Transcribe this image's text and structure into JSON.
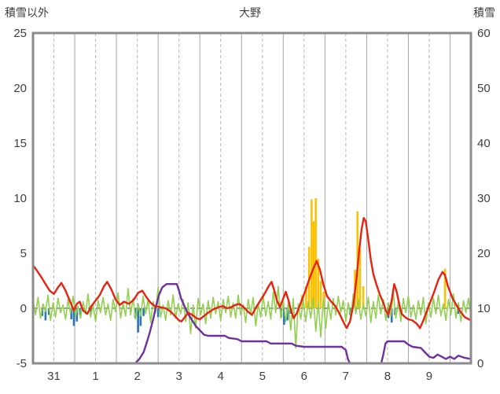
{
  "chart_data": {
    "type": "line",
    "title": "大野",
    "left_axis_label": "積雪以外",
    "right_axis_label": "積雪",
    "x_domain": [
      0,
      10.5
    ],
    "left_ylim": [
      -5,
      25
    ],
    "right_ylim": [
      0,
      60
    ],
    "left_ticks": [
      -5,
      0,
      5,
      10,
      15,
      20,
      25
    ],
    "right_ticks": [
      0,
      10,
      20,
      30,
      40,
      50,
      60
    ],
    "x_tick_labels": [
      "31",
      "1",
      "2",
      "3",
      "4",
      "5",
      "6",
      "7",
      "8",
      "9"
    ],
    "grid": {
      "vertical_solid_at_integers": true,
      "vertical_dashed_at_halves": true,
      "zero_line_dashed": true
    },
    "colors": {
      "red": "#e8220f",
      "green": "#92d050",
      "purple": "#7030a0",
      "orange": "#ffc000",
      "blue": "#2e75b6",
      "grid": "#a6a6a6",
      "frame": "#8c8c8c"
    },
    "series": [
      {
        "name": "orange-bars",
        "type": "bars-up",
        "color": "#ffc000",
        "width": 2.6,
        "points": [
          [
            6.45,
            1.2
          ],
          [
            6.55,
            2.0
          ],
          [
            6.62,
            5.6
          ],
          [
            6.68,
            9.9
          ],
          [
            6.73,
            7.9
          ],
          [
            6.78,
            10.0
          ],
          [
            6.84,
            4.5
          ],
          [
            6.9,
            2.5
          ],
          [
            6.97,
            1.5
          ],
          [
            7.72,
            3.5
          ],
          [
            7.78,
            8.8
          ],
          [
            7.84,
            5.4
          ],
          [
            7.92,
            2.0
          ],
          [
            9.88,
            3.6
          ]
        ]
      },
      {
        "name": "blue-bars",
        "type": "bars-down",
        "color": "#2e75b6",
        "width": 2.6,
        "points": [
          [
            0.22,
            -0.7
          ],
          [
            0.3,
            -1.1
          ],
          [
            0.38,
            -0.6
          ],
          [
            0.92,
            -1.0
          ],
          [
            0.98,
            -1.6
          ],
          [
            1.05,
            -1.2
          ],
          [
            1.12,
            -0.6
          ],
          [
            1.39,
            -0.5
          ],
          [
            2.45,
            -0.9
          ],
          [
            2.52,
            -2.2
          ],
          [
            2.58,
            -1.6
          ],
          [
            2.65,
            -0.7
          ],
          [
            3.0,
            -0.8
          ],
          [
            5.95,
            -0.8
          ],
          [
            6.02,
            -1.5
          ],
          [
            6.1,
            -1.1
          ],
          [
            6.18,
            -0.5
          ],
          [
            7.6,
            -0.6
          ],
          [
            8.52,
            -0.9
          ],
          [
            8.6,
            -1.3
          ],
          [
            8.68,
            -0.6
          ],
          [
            10.2,
            -0.5
          ]
        ]
      },
      {
        "name": "green-line",
        "type": "line",
        "color": "#92d050",
        "width": 1.6,
        "t0": 0,
        "dt": 0.06,
        "values": [
          0.7,
          -0.6,
          1.0,
          -0.9,
          0.4,
          -0.3,
          1.2,
          -1.1,
          0.5,
          -0.8,
          0.9,
          -0.4,
          0.3,
          -1.0,
          0.8,
          -0.5,
          1.1,
          -0.7,
          0.2,
          -0.9,
          0.6,
          -0.5,
          1.3,
          -0.8,
          0.3,
          -1.2,
          0.7,
          -0.4,
          1.0,
          -0.6,
          0.4,
          -1.1,
          0.8,
          -0.3,
          1.4,
          -0.9,
          0.5,
          -0.7,
          1.8,
          -0.6,
          0.9,
          -1.0,
          0.4,
          -0.7,
          1.1,
          -0.5,
          0.8,
          -1.3,
          0.6,
          -0.4,
          1.9,
          -0.8,
          0.3,
          -1.1,
          0.7,
          -0.6,
          1.2,
          -0.9,
          0.4,
          -0.5,
          0.8,
          -1.2,
          0.5,
          -2.3,
          0.3,
          -1.8,
          0.9,
          -0.6,
          0.4,
          -1.4,
          0.7,
          -0.9,
          1.0,
          -0.5,
          0.6,
          -1.1,
          0.8,
          -0.4,
          1.1,
          -0.8,
          0.5,
          -0.9,
          1.2,
          -0.6,
          0.3,
          -1.3,
          0.8,
          -0.5,
          1.0,
          -1.6,
          0.4,
          -0.8,
          1.1,
          -0.7,
          0.6,
          -1.0,
          1.5,
          -0.4,
          2.0,
          -0.9,
          0.7,
          -1.2,
          0.5,
          -2.0,
          0.9,
          -3.6,
          0.4,
          -1.0,
          0.8,
          -1.2,
          0.6,
          -0.9,
          1.0,
          -2.1,
          0.5,
          -2.6,
          0.8,
          -1.8,
          0.6,
          -1.0,
          0.9,
          -0.6,
          1.1,
          -0.4,
          0.7,
          -1.2,
          0.5,
          -0.8,
          1.3,
          -0.5,
          0.8,
          -1.0,
          0.4,
          -0.7,
          1.0,
          -1.3,
          0.6,
          -0.9,
          1.2,
          -0.5,
          0.8,
          -1.1,
          0.5,
          -0.7,
          1.4,
          -0.9,
          0.6,
          -1.2,
          0.9,
          -0.4,
          1.1,
          -0.8,
          0.3,
          -1.0,
          0.7,
          -0.6,
          1.0,
          -1.4,
          0.5,
          -0.8,
          0.9,
          -0.5,
          1.2,
          -0.7,
          0.4,
          -1.1,
          0.8,
          -0.6,
          1.3,
          -0.9,
          0.5,
          -1.2,
          0.7,
          -0.4,
          0.9,
          -0.8
        ]
      },
      {
        "name": "purple-line",
        "type": "line",
        "color": "#7030a0",
        "width": 2.4,
        "points": [
          [
            0,
            -5
          ],
          [
            2.45,
            -5
          ],
          [
            2.55,
            -4.6
          ],
          [
            2.65,
            -4.0
          ],
          [
            2.72,
            -3.2
          ],
          [
            2.8,
            -2.2
          ],
          [
            2.88,
            -1.0
          ],
          [
            2.95,
            0.2
          ],
          [
            3.02,
            1.2
          ],
          [
            3.1,
            1.9
          ],
          [
            3.2,
            2.2
          ],
          [
            3.45,
            2.2
          ],
          [
            3.5,
            1.6
          ],
          [
            3.55,
            0.9
          ],
          [
            3.62,
            0.3
          ],
          [
            3.7,
            -0.4
          ],
          [
            3.8,
            -1.0
          ],
          [
            3.9,
            -1.6
          ],
          [
            4.0,
            -2.0
          ],
          [
            4.1,
            -2.4
          ],
          [
            4.2,
            -2.5
          ],
          [
            4.6,
            -2.5
          ],
          [
            4.7,
            -2.7
          ],
          [
            4.9,
            -2.8
          ],
          [
            5.0,
            -3.0
          ],
          [
            5.6,
            -3.0
          ],
          [
            5.7,
            -3.2
          ],
          [
            6.2,
            -3.2
          ],
          [
            6.3,
            -3.4
          ],
          [
            6.5,
            -3.5
          ],
          [
            7.4,
            -3.5
          ],
          [
            7.5,
            -3.8
          ],
          [
            7.55,
            -4.6
          ],
          [
            7.6,
            -5.0
          ],
          [
            8.35,
            -5.0
          ],
          [
            8.4,
            -4.2
          ],
          [
            8.45,
            -3.2
          ],
          [
            8.5,
            -3.0
          ],
          [
            8.9,
            -3.0
          ],
          [
            9.0,
            -3.3
          ],
          [
            9.1,
            -3.5
          ],
          [
            9.3,
            -3.6
          ],
          [
            9.4,
            -4.0
          ],
          [
            9.5,
            -4.4
          ],
          [
            9.6,
            -4.5
          ],
          [
            9.7,
            -4.2
          ],
          [
            9.8,
            -4.4
          ],
          [
            9.9,
            -4.6
          ],
          [
            10.0,
            -4.4
          ],
          [
            10.1,
            -4.6
          ],
          [
            10.2,
            -4.3
          ],
          [
            10.35,
            -4.5
          ],
          [
            10.5,
            -4.6
          ]
        ]
      },
      {
        "name": "red-line",
        "type": "line",
        "color": "#e8220f",
        "width": 2.4,
        "points": [
          [
            0,
            3.9
          ],
          [
            0.08,
            3.5
          ],
          [
            0.15,
            3.1
          ],
          [
            0.22,
            2.7
          ],
          [
            0.3,
            2.2
          ],
          [
            0.4,
            1.6
          ],
          [
            0.5,
            1.3
          ],
          [
            0.6,
            1.9
          ],
          [
            0.68,
            2.3
          ],
          [
            0.78,
            1.6
          ],
          [
            0.88,
            0.7
          ],
          [
            0.98,
            -0.2
          ],
          [
            1.05,
            0.4
          ],
          [
            1.12,
            0.6
          ],
          [
            1.2,
            -0.2
          ],
          [
            1.3,
            -0.5
          ],
          [
            1.4,
            0.2
          ],
          [
            1.5,
            0.7
          ],
          [
            1.6,
            1.2
          ],
          [
            1.7,
            2.0
          ],
          [
            1.78,
            2.4
          ],
          [
            1.88,
            1.7
          ],
          [
            1.98,
            0.8
          ],
          [
            2.08,
            0.3
          ],
          [
            2.18,
            0.6
          ],
          [
            2.3,
            0.4
          ],
          [
            2.42,
            0.8
          ],
          [
            2.52,
            1.4
          ],
          [
            2.62,
            1.6
          ],
          [
            2.72,
            1.0
          ],
          [
            2.82,
            0.5
          ],
          [
            2.92,
            0.2
          ],
          [
            3.05,
            0.1
          ],
          [
            3.18,
            0.0
          ],
          [
            3.3,
            -0.3
          ],
          [
            3.4,
            -0.7
          ],
          [
            3.5,
            -1.1
          ],
          [
            3.56,
            -1.2
          ],
          [
            3.64,
            -0.8
          ],
          [
            3.72,
            -0.4
          ],
          [
            3.82,
            -0.6
          ],
          [
            3.92,
            -0.9
          ],
          [
            4.0,
            -1.0
          ],
          [
            4.1,
            -0.7
          ],
          [
            4.2,
            -0.4
          ],
          [
            4.32,
            -0.1
          ],
          [
            4.45,
            0.1
          ],
          [
            4.55,
            0.2
          ],
          [
            4.65,
            0.0
          ],
          [
            4.75,
            0.1
          ],
          [
            4.85,
            0.3
          ],
          [
            4.95,
            0.4
          ],
          [
            5.05,
            0.1
          ],
          [
            5.15,
            -0.3
          ],
          [
            5.25,
            -0.6
          ],
          [
            5.35,
            0.1
          ],
          [
            5.45,
            0.7
          ],
          [
            5.55,
            1.3
          ],
          [
            5.65,
            2.0
          ],
          [
            5.72,
            2.4
          ],
          [
            5.78,
            1.7
          ],
          [
            5.85,
            0.7
          ],
          [
            5.92,
            0.1
          ],
          [
            6.0,
            0.9
          ],
          [
            6.06,
            1.5
          ],
          [
            6.12,
            0.8
          ],
          [
            6.18,
            -0.1
          ],
          [
            6.25,
            -0.9
          ],
          [
            6.33,
            -0.4
          ],
          [
            6.42,
            0.5
          ],
          [
            6.52,
            1.5
          ],
          [
            6.62,
            2.6
          ],
          [
            6.72,
            3.6
          ],
          [
            6.8,
            4.3
          ],
          [
            6.88,
            3.5
          ],
          [
            6.96,
            2.2
          ],
          [
            7.05,
            1.1
          ],
          [
            7.15,
            0.6
          ],
          [
            7.25,
            0.2
          ],
          [
            7.35,
            -0.5
          ],
          [
            7.45,
            -1.3
          ],
          [
            7.52,
            -1.8
          ],
          [
            7.6,
            -1.2
          ],
          [
            7.68,
            0.3
          ],
          [
            7.76,
            2.8
          ],
          [
            7.82,
            5.2
          ],
          [
            7.88,
            7.2
          ],
          [
            7.93,
            8.2
          ],
          [
            7.98,
            7.9
          ],
          [
            8.04,
            6.2
          ],
          [
            8.1,
            4.4
          ],
          [
            8.16,
            3.1
          ],
          [
            8.24,
            2.1
          ],
          [
            8.32,
            1.2
          ],
          [
            8.4,
            0.5
          ],
          [
            8.46,
            -0.2
          ],
          [
            8.52,
            -0.6
          ],
          [
            8.6,
            0.7
          ],
          [
            8.66,
            2.2
          ],
          [
            8.72,
            1.5
          ],
          [
            8.78,
            0.4
          ],
          [
            8.84,
            -0.5
          ],
          [
            8.92,
            -0.8
          ],
          [
            9.0,
            -1.0
          ],
          [
            9.1,
            -1.1
          ],
          [
            9.2,
            -1.4
          ],
          [
            9.28,
            -1.8
          ],
          [
            9.36,
            -1.1
          ],
          [
            9.44,
            -0.3
          ],
          [
            9.52,
            0.5
          ],
          [
            9.62,
            1.5
          ],
          [
            9.72,
            2.6
          ],
          [
            9.82,
            3.3
          ],
          [
            9.88,
            3.0
          ],
          [
            9.95,
            2.0
          ],
          [
            10.05,
            1.0
          ],
          [
            10.15,
            0.3
          ],
          [
            10.25,
            -0.3
          ],
          [
            10.35,
            -0.8
          ],
          [
            10.5,
            -1.1
          ]
        ]
      }
    ]
  }
}
